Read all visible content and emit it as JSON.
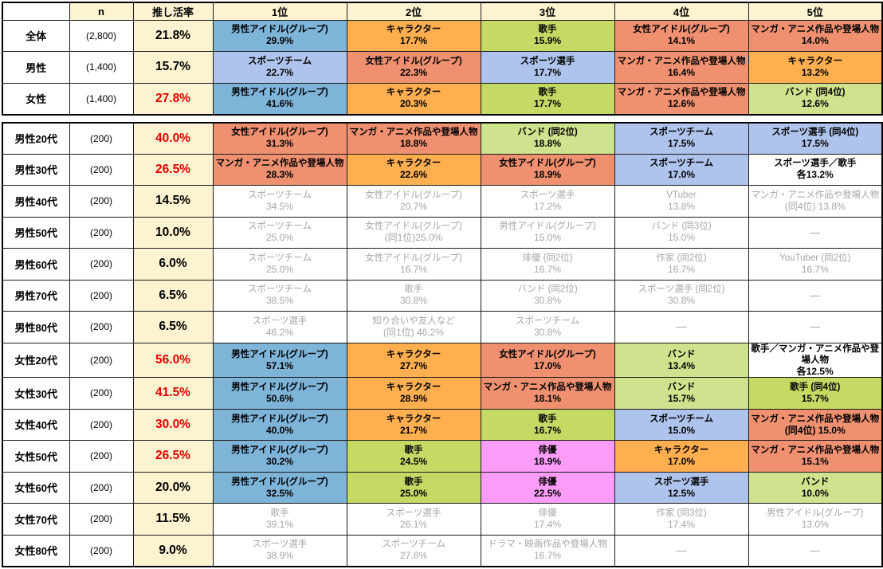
{
  "colors": {
    "male_idol": "#7FB4D9",
    "character": "#FFAF4F",
    "singer": "#C4DA64",
    "female_idol": "#EF9070",
    "manga_anime": "#EF9070",
    "sports_team": "#AFC4EC",
    "sports_player": "#AFC4EC",
    "band": "#CFE28D",
    "actor": "#FB9CF8",
    "none": "#FFFFFF",
    "header_bg": "#FDF3D1",
    "red_text": "#E60000",
    "muted_text": "#A6A6A6"
  },
  "chart_data": {
    "type": "table",
    "columns": [
      "",
      "n",
      "推し活率",
      "1位",
      "2位",
      "3位",
      "4位",
      "5位"
    ],
    "sections": [
      {
        "rows": [
          {
            "label": "全体",
            "n": "(2,800)",
            "rate": "21.8%",
            "red": false,
            "muted": false,
            "ranks": [
              {
                "line1": "男性アイドル(グループ)",
                "line2": "29.9%",
                "color": "male_idol"
              },
              {
                "line1": "キャラクター",
                "line2": "17.7%",
                "color": "character"
              },
              {
                "line1": "歌手",
                "line2": "15.9%",
                "color": "singer"
              },
              {
                "line1": "女性アイドル(グループ)",
                "line2": "14.1%",
                "color": "female_idol"
              },
              {
                "line1": "マンガ・アニメ作品や登場人物",
                "line2": "14.0%",
                "color": "manga_anime"
              }
            ]
          },
          {
            "label": "男性",
            "n": "(1,400)",
            "rate": "15.7%",
            "red": false,
            "muted": false,
            "ranks": [
              {
                "line1": "スポーツチーム",
                "line2": "22.7%",
                "color": "sports_team"
              },
              {
                "line1": "女性アイドル(グループ)",
                "line2": "22.3%",
                "color": "female_idol"
              },
              {
                "line1": "スポーツ選手",
                "line2": "17.7%",
                "color": "sports_player"
              },
              {
                "line1": "マンガ・アニメ作品や登場人物",
                "line2": "16.4%",
                "color": "manga_anime"
              },
              {
                "line1": "キャラクター",
                "line2": "13.2%",
                "color": "character"
              }
            ]
          },
          {
            "label": "女性",
            "n": "(1,400)",
            "rate": "27.8%",
            "red": true,
            "muted": false,
            "ranks": [
              {
                "line1": "男性アイドル(グループ)",
                "line2": "41.6%",
                "color": "male_idol"
              },
              {
                "line1": "キャラクター",
                "line2": "20.3%",
                "color": "character"
              },
              {
                "line1": "歌手",
                "line2": "17.7%",
                "color": "singer"
              },
              {
                "line1": "マンガ・アニメ作品や登場人物",
                "line2": "12.6%",
                "color": "manga_anime"
              },
              {
                "line1": "バンド (同4位)",
                "line2": "12.6%",
                "color": "band"
              }
            ]
          }
        ]
      },
      {
        "rows": [
          {
            "label": "男性20代",
            "n": "(200)",
            "rate": "40.0%",
            "red": true,
            "muted": false,
            "ranks": [
              {
                "line1": "女性アイドル(グループ)",
                "line2": "31.3%",
                "color": "female_idol"
              },
              {
                "line1": "マンガ・アニメ作品や登場人物",
                "line2": "18.8%",
                "color": "manga_anime"
              },
              {
                "line1": "バンド (同2位)",
                "line2": "18.8%",
                "color": "band"
              },
              {
                "line1": "スポーツチーム",
                "line2": "17.5%",
                "color": "sports_team"
              },
              {
                "line1": "スポーツ選手 (同4位)",
                "line2": "17.5%",
                "color": "sports_player"
              }
            ]
          },
          {
            "label": "男性30代",
            "n": "(200)",
            "rate": "26.5%",
            "red": true,
            "muted": false,
            "ranks": [
              {
                "line1": "マンガ・アニメ作品や登場人物",
                "line2": "28.3%",
                "color": "manga_anime"
              },
              {
                "line1": "キャラクター",
                "line2": "22.6%",
                "color": "character"
              },
              {
                "line1": "女性アイドル(グループ)",
                "line2": "18.9%",
                "color": "female_idol"
              },
              {
                "line1": "スポーツチーム",
                "line2": "17.0%",
                "color": "sports_team"
              },
              {
                "line1": "スポーツ選手／歌手",
                "line2": "各13.2%",
                "color": "none"
              }
            ]
          },
          {
            "label": "男性40代",
            "n": "(200)",
            "rate": "14.5%",
            "red": false,
            "muted": true,
            "ranks": [
              {
                "line1": "スポーツチーム",
                "line2": "34.5%",
                "color": "none"
              },
              {
                "line1": "女性アイドル(グループ)",
                "line2": "20.7%",
                "color": "none"
              },
              {
                "line1": "スポーツ選手",
                "line2": "17.2%",
                "color": "none"
              },
              {
                "line1": "VTuber",
                "line2": "13.8%",
                "color": "none"
              },
              {
                "line1": "マンガ・アニメ作品や登場人物",
                "line2": "(同4位) 13.8%",
                "color": "none"
              }
            ]
          },
          {
            "label": "男性50代",
            "n": "(200)",
            "rate": "10.0%",
            "red": false,
            "muted": true,
            "ranks": [
              {
                "line1": "スポーツチーム",
                "line2": "25.0%",
                "color": "none"
              },
              {
                "line1": "女性アイドル(グループ)",
                "line2": "(同1位)25.0%",
                "color": "none"
              },
              {
                "line1": "男性アイドル(グループ)",
                "line2": "15.0%",
                "color": "none"
              },
              {
                "line1": "バンド (同3位)",
                "line2": "15.0%",
                "color": "none"
              },
              {
                "line1": "—",
                "line2": "",
                "color": "none"
              }
            ]
          },
          {
            "label": "男性60代",
            "n": "(200)",
            "rate": "6.0%",
            "red": false,
            "muted": true,
            "ranks": [
              {
                "line1": "スポーツチーム",
                "line2": "25.0%",
                "color": "none"
              },
              {
                "line1": "女性アイドル(グループ)",
                "line2": "16.7%",
                "color": "none"
              },
              {
                "line1": "俳優 (同2位)",
                "line2": "16.7%",
                "color": "none"
              },
              {
                "line1": "作家 (同2位)",
                "line2": "16.7%",
                "color": "none"
              },
              {
                "line1": "YouTuber (同2位)",
                "line2": "16.7%",
                "color": "none"
              }
            ]
          },
          {
            "label": "男性70代",
            "n": "(200)",
            "rate": "6.5%",
            "red": false,
            "muted": true,
            "ranks": [
              {
                "line1": "スポーツチーム",
                "line2": "38.5%",
                "color": "none"
              },
              {
                "line1": "歌手",
                "line2": "30.8%",
                "color": "none"
              },
              {
                "line1": "バンド (同2位)",
                "line2": "30.8%",
                "color": "none"
              },
              {
                "line1": "スポーツ選手 (同2位)",
                "line2": "30.8%",
                "color": "none"
              },
              {
                "line1": "—",
                "line2": "",
                "color": "none"
              }
            ]
          },
          {
            "label": "男性80代",
            "n": "(200)",
            "rate": "6.5%",
            "red": false,
            "muted": true,
            "ranks": [
              {
                "line1": "スポーツ選手",
                "line2": "46.2%",
                "color": "none"
              },
              {
                "line1": "知り合いや友人など",
                "line2": "(同1位) 46.2%",
                "color": "none"
              },
              {
                "line1": "スポーツチーム",
                "line2": "30.8%",
                "color": "none"
              },
              {
                "line1": "—",
                "line2": "",
                "color": "none"
              },
              {
                "line1": "—",
                "line2": "",
                "color": "none"
              }
            ]
          },
          {
            "label": "女性20代",
            "n": "(200)",
            "rate": "56.0%",
            "red": true,
            "muted": false,
            "ranks": [
              {
                "line1": "男性アイドル(グループ)",
                "line2": "57.1%",
                "color": "male_idol"
              },
              {
                "line1": "キャラクター",
                "line2": "27.7%",
                "color": "character"
              },
              {
                "line1": "女性アイドル(グループ)",
                "line2": "17.0%",
                "color": "female_idol"
              },
              {
                "line1": "バンド",
                "line2": "13.4%",
                "color": "band"
              },
              {
                "line1": "歌手／マンガ・アニメ作品や登場人物",
                "line2": "各12.5%",
                "color": "none"
              }
            ]
          },
          {
            "label": "女性30代",
            "n": "(200)",
            "rate": "41.5%",
            "red": true,
            "muted": false,
            "ranks": [
              {
                "line1": "男性アイドル(グループ)",
                "line2": "50.6%",
                "color": "male_idol"
              },
              {
                "line1": "キャラクター",
                "line2": "28.9%",
                "color": "character"
              },
              {
                "line1": "マンガ・アニメ作品や登場人物",
                "line2": "18.1%",
                "color": "manga_anime"
              },
              {
                "line1": "バンド",
                "line2": "15.7%",
                "color": "band"
              },
              {
                "line1": "歌手 (同4位)",
                "line2": "15.7%",
                "color": "singer"
              }
            ]
          },
          {
            "label": "女性40代",
            "n": "(200)",
            "rate": "30.0%",
            "red": true,
            "muted": false,
            "ranks": [
              {
                "line1": "男性アイドル(グループ)",
                "line2": "40.0%",
                "color": "male_idol"
              },
              {
                "line1": "キャラクター",
                "line2": "21.7%",
                "color": "character"
              },
              {
                "line1": "歌手",
                "line2": "16.7%",
                "color": "singer"
              },
              {
                "line1": "スポーツチーム",
                "line2": "15.0%",
                "color": "sports_team"
              },
              {
                "line1": "マンガ・アニメ作品や登場人物",
                "line2": "(同4位) 15.0%",
                "color": "manga_anime"
              }
            ]
          },
          {
            "label": "女性50代",
            "n": "(200)",
            "rate": "26.5%",
            "red": true,
            "muted": false,
            "ranks": [
              {
                "line1": "男性アイドル(グループ)",
                "line2": "30.2%",
                "color": "male_idol"
              },
              {
                "line1": "歌手",
                "line2": "24.5%",
                "color": "singer"
              },
              {
                "line1": "俳優",
                "line2": "18.9%",
                "color": "actor"
              },
              {
                "line1": "キャラクター",
                "line2": "17.0%",
                "color": "character"
              },
              {
                "line1": "マンガ・アニメ作品や登場人物",
                "line2": "15.1%",
                "color": "manga_anime"
              }
            ]
          },
          {
            "label": "女性60代",
            "n": "(200)",
            "rate": "20.0%",
            "red": false,
            "muted": false,
            "ranks": [
              {
                "line1": "男性アイドル(グループ)",
                "line2": "32.5%",
                "color": "male_idol"
              },
              {
                "line1": "歌手",
                "line2": "25.0%",
                "color": "singer"
              },
              {
                "line1": "俳優",
                "line2": "22.5%",
                "color": "actor"
              },
              {
                "line1": "スポーツ選手",
                "line2": "12.5%",
                "color": "sports_player"
              },
              {
                "line1": "バンド",
                "line2": "10.0%",
                "color": "band"
              }
            ]
          },
          {
            "label": "女性70代",
            "n": "(200)",
            "rate": "11.5%",
            "red": false,
            "muted": true,
            "ranks": [
              {
                "line1": "歌手",
                "line2": "39.1%",
                "color": "none"
              },
              {
                "line1": "スポーツ選手",
                "line2": "26.1%",
                "color": "none"
              },
              {
                "line1": "俳優",
                "line2": "17.4%",
                "color": "none"
              },
              {
                "line1": "作家 (同3位)",
                "line2": "17.4%",
                "color": "none"
              },
              {
                "line1": "男性アイドル(グループ)",
                "line2": "13.0%",
                "color": "none"
              }
            ]
          },
          {
            "label": "女性80代",
            "n": "(200)",
            "rate": "9.0%",
            "red": false,
            "muted": true,
            "ranks": [
              {
                "line1": "スポーツ選手",
                "line2": "38.9%",
                "color": "none"
              },
              {
                "line1": "スポーツチーム",
                "line2": "27.8%",
                "color": "none"
              },
              {
                "line1": "ドラマ・映画作品や登場人物",
                "line2": "16.7%",
                "color": "none"
              },
              {
                "line1": "—",
                "line2": "",
                "color": "none"
              },
              {
                "line1": "—",
                "line2": "",
                "color": "none"
              }
            ]
          }
        ]
      }
    ]
  }
}
